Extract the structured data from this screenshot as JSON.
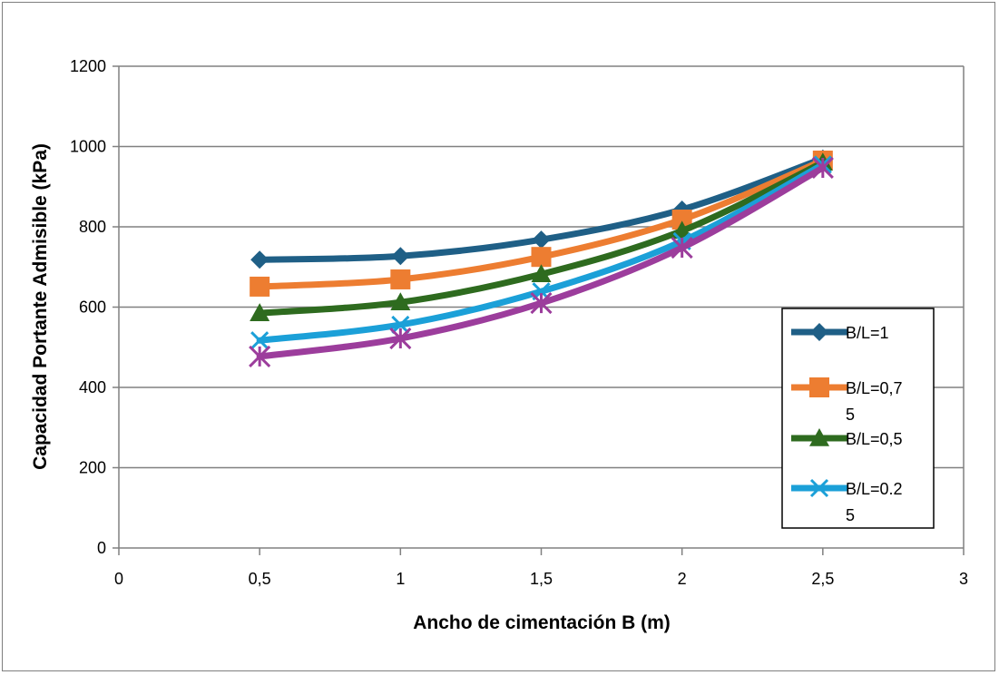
{
  "chart_data": {
    "type": "line",
    "xlabel": "Ancho de cimentación B (m)",
    "ylabel": "Capacidad Portante Admisible (kPa)",
    "xlim": [
      0,
      3
    ],
    "ylim": [
      0,
      1200
    ],
    "x_ticks": [
      "0",
      "0,5",
      "1",
      "1,5",
      "2",
      "2,5",
      "3"
    ],
    "y_ticks": [
      "0",
      "200",
      "400",
      "600",
      "800",
      "1000",
      "1200"
    ],
    "grid": "horizontal",
    "legend_position": "right",
    "x": [
      0.5,
      1,
      1.5,
      2,
      2.5
    ],
    "series": [
      {
        "name": "B/L=1",
        "name_lines": [
          "B/L=1"
        ],
        "color": "#1f5f86",
        "marker": "diamond",
        "values": [
          718,
          727,
          768,
          843,
          970
        ],
        "in_legend": true
      },
      {
        "name": "B/L=0,75",
        "name_lines": [
          "B/L=0,7",
          "5"
        ],
        "color": "#ed7d31",
        "marker": "square",
        "values": [
          651,
          669,
          725,
          818,
          965
        ],
        "in_legend": true
      },
      {
        "name": "B/L=0,5",
        "name_lines": [
          "B/L=0,5"
        ],
        "color": "#2e6b1f",
        "marker": "triangle",
        "values": [
          585,
          612,
          682,
          790,
          960
        ],
        "in_legend": true
      },
      {
        "name": "B/L=0.25",
        "name_lines": [
          "B/L=0.2",
          "5"
        ],
        "color": "#1ba0d8",
        "marker": "x",
        "values": [
          517,
          556,
          639,
          764,
          955
        ],
        "in_legend": true
      },
      {
        "name": "",
        "name_lines": [],
        "color": "#9c3d9c",
        "marker": "star",
        "values": [
          477,
          522,
          610,
          748,
          947
        ],
        "in_legend": false
      }
    ]
  }
}
